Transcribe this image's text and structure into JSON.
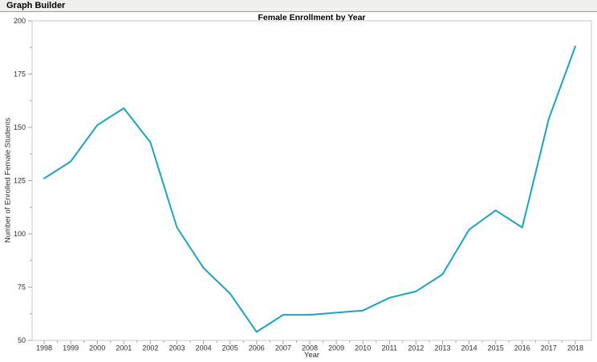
{
  "window": {
    "title": "Graph Builder"
  },
  "colors": {
    "line": "#1BA3C6",
    "frame": "#c9c9c9",
    "tick": "#a6a6a6",
    "tick_label": "#2e2e2e",
    "titlebar_bg": "#f0f0ee"
  },
  "chart_data": {
    "type": "line",
    "title": "Female Enrollment by Year",
    "xlabel": "Year",
    "ylabel": "Number of Enrolled Female Students",
    "x": [
      "1998",
      "1999",
      "2000",
      "2001",
      "2002",
      "2003",
      "2004",
      "2005",
      "2006",
      "2007",
      "2008",
      "2009",
      "2010",
      "2011",
      "2012",
      "2013",
      "2014",
      "2015",
      "2016",
      "2017",
      "2018"
    ],
    "values": [
      126,
      134,
      151,
      159,
      143,
      103,
      84,
      72,
      54,
      62,
      62,
      63,
      64,
      70,
      73,
      81,
      102,
      111,
      103,
      154,
      188
    ],
    "ylim": [
      50,
      200
    ],
    "yticks": [
      50,
      75,
      100,
      125,
      150,
      175,
      200
    ],
    "grid": false,
    "legend": "none",
    "line_color": "#1BA3C6"
  }
}
